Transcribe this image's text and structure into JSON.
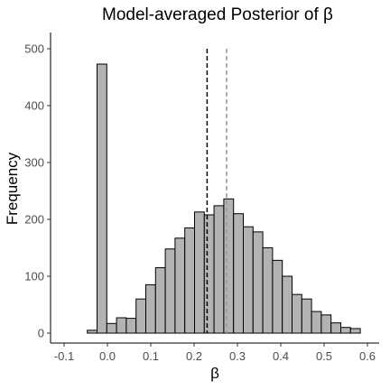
{
  "chart_data": {
    "type": "bar",
    "title": "Model-averaged Posterior of β",
    "xlabel": "β",
    "ylabel": "Frequency",
    "xlim": [
      -0.1,
      0.6
    ],
    "ylim": [
      0,
      520
    ],
    "x_ticks": [
      "-0.1",
      "0.0",
      "0.1",
      "0.2",
      "0.3",
      "0.4",
      "0.5",
      "0.6"
    ],
    "x_tick_values": [
      -0.1,
      0.0,
      0.1,
      0.2,
      0.3,
      0.4,
      0.5,
      0.6
    ],
    "y_ticks": [
      "0",
      "100",
      "200",
      "300",
      "400",
      "500"
    ],
    "y_tick_values": [
      0,
      100,
      200,
      300,
      400,
      500
    ],
    "bin_width": 0.0225,
    "bin_centers": [
      -0.0802,
      -0.0577,
      -0.0352,
      -0.0127,
      0.0098,
      0.0323,
      0.0548,
      0.0773,
      0.0998,
      0.1223,
      0.1448,
      0.1673,
      0.1898,
      0.2123,
      0.2348,
      0.2573,
      0.2798,
      0.3023,
      0.3248,
      0.3473,
      0.3698,
      0.3923,
      0.4148,
      0.4373,
      0.4598,
      0.4823,
      0.5048,
      0.5273,
      0.5498,
      0.5723
    ],
    "values": [
      0,
      0,
      5,
      473,
      17,
      27,
      26,
      60,
      85,
      115,
      148,
      167,
      185,
      213,
      208,
      224,
      236,
      210,
      187,
      178,
      150,
      128,
      100,
      68,
      60,
      38,
      32,
      18,
      10,
      8
    ],
    "fill_color": "#b3b3b3",
    "edge_color": "#000000",
    "grid": false,
    "vlines": [
      {
        "x": 0.23,
        "style": "dashed",
        "color": "#000000"
      },
      {
        "x": 0.275,
        "style": "dashed",
        "color": "#999999"
      }
    ]
  }
}
